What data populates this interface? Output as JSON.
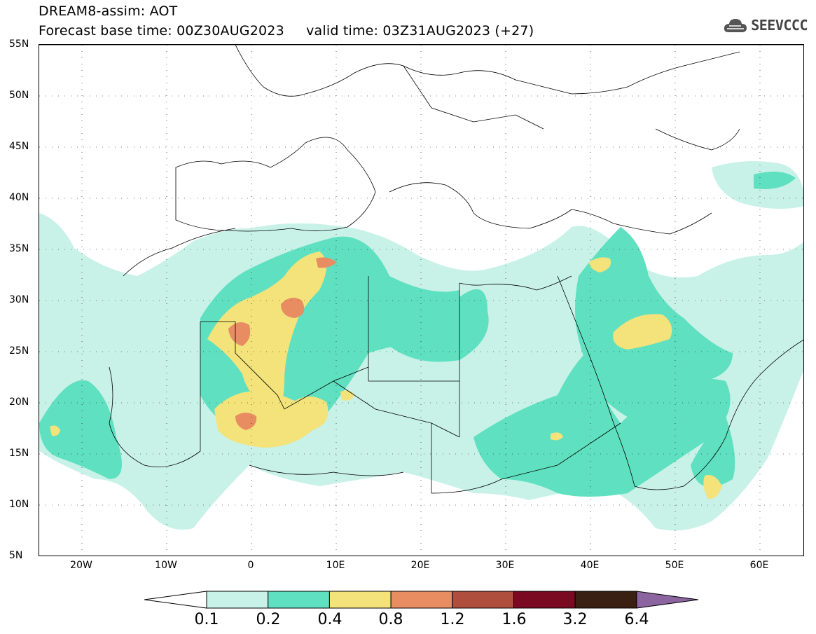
{
  "header": {
    "title_line1": "DREAM8-assim: AOT",
    "title_line2": "Forecast base time: 00Z30AUG2023     valid time: 03Z31AUG2023 (+27)"
  },
  "logo": {
    "text": "SEEVCCC",
    "icon": "cloud-icon"
  },
  "axes": {
    "lat_labels": [
      "55N",
      "50N",
      "45N",
      "40N",
      "35N",
      "30N",
      "25N",
      "20N",
      "15N",
      "10N",
      "5N"
    ],
    "lon_labels": [
      "20W",
      "10W",
      "0",
      "10E",
      "20E",
      "30E",
      "40E",
      "50E",
      "60E"
    ],
    "lat_range": [
      5,
      55
    ],
    "lon_range": [
      -25,
      65
    ]
  },
  "colorbar": {
    "levels": [
      "0.1",
      "0.2",
      "0.4",
      "0.8",
      "1.2",
      "1.6",
      "3.2",
      "6.4"
    ],
    "colors": [
      "#ffffff",
      "#c8f2e8",
      "#5fe0c0",
      "#f3e37a",
      "#e88c62",
      "#b04e3e",
      "#7a0a22",
      "#3a2012",
      "#8c64a0"
    ]
  }
}
